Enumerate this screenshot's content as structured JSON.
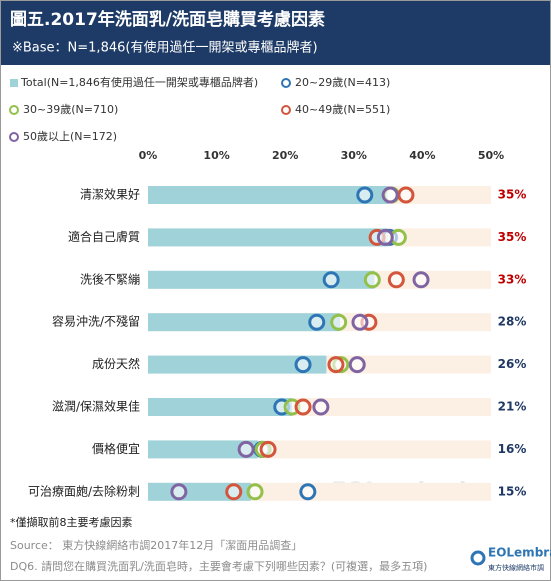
{
  "chart_data": {
    "type": "dot",
    "title": "圖五.2017年洗面乳/洗面皂購買考慮因素",
    "subtitle": "※Base：N=1,846(有使用過任一開架或專櫃品牌者)",
    "categories": [
      "清潔效果好",
      "適合自己膚質",
      "洗後不緊繃",
      "容易沖洗/不殘留",
      "成份天然",
      "滋潤/保濕效果佳",
      "價格便宜",
      "可治療面皰/去除粉刺"
    ],
    "xlim": [
      0,
      50
    ],
    "xticks": [
      {
        "value": 0,
        "label": "0%"
      },
      {
        "value": 10,
        "label": "10%"
      },
      {
        "value": 20,
        "label": "20%"
      },
      {
        "value": 30,
        "label": "30%"
      },
      {
        "value": 40,
        "label": "40%"
      },
      {
        "value": 50,
        "label": "50%"
      }
    ],
    "grid": false,
    "total": {
      "name": "Total(N=1,846有使用過任一開架或專櫃品牌者)",
      "color": "#a0d3d9",
      "background_color": "#fcefe4",
      "values": [
        35,
        35,
        33,
        28,
        26,
        21,
        16,
        15
      ],
      "value_labels": [
        "35%",
        "35%",
        "33%",
        "28%",
        "26%",
        "21%",
        "16%",
        "15%"
      ],
      "value_label_colors": [
        "#c00000",
        "#c00000",
        "#c00000",
        "#1f3864",
        "#1f3864",
        "#1f3864",
        "#1f3864",
        "#1f3864"
      ]
    },
    "series": [
      {
        "name": "20~29歲(N=413)",
        "color": "#2e75b6",
        "values": [
          31.6,
          35.2,
          26.7,
          24.6,
          22.6,
          19.5,
          16.6,
          23.3
        ]
      },
      {
        "name": "30~39歲(N=710)",
        "color": "#92c04a",
        "values": [
          35.5,
          36.5,
          32.7,
          27.8,
          28.1,
          21.0,
          16.8,
          15.6
        ]
      },
      {
        "name": "40~49歲(N=551)",
        "color": "#d2553c",
        "values": [
          37.6,
          33.4,
          36.2,
          32.2,
          27.4,
          22.6,
          17.5,
          12.5
        ]
      },
      {
        "name": "50歲以上(N=172)",
        "color": "#8064a2",
        "values": [
          35.3,
          34.6,
          39.8,
          30.9,
          30.5,
          25.2,
          14.3,
          4.5
        ]
      }
    ],
    "watermark": "EOLembrain",
    "footnote": "*僅擷取前8主要考慮因素",
    "source": "Source：  東方快線網絡市調2017年12月「潔面用品調查」",
    "question": "DQ6. 請問您在購買洗面乳/洗面皂時，主要會考慮下列哪些因素？(可複選，最多五項)",
    "logo": "EOLembrain",
    "logo_subtitle": "東方快線網絡市調"
  }
}
